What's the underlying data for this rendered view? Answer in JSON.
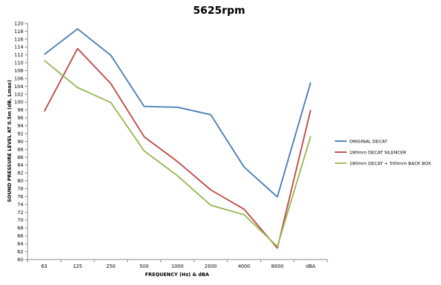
{
  "chart_data": {
    "type": "line",
    "title": "5625rpm",
    "xlabel": "FREQUENCY (Hz) & dBA",
    "ylabel": "SOUND PRESSURE LEVEL AT 0.5m (dB, Lmax)",
    "ylim": [
      60,
      120
    ],
    "y_step": 2,
    "grid": false,
    "legend_position": "right",
    "categories": [
      "63",
      "125",
      "250",
      "500",
      "1000",
      "2000",
      "4000",
      "8000",
      "dBA"
    ],
    "series": [
      {
        "name": "ORIGINAL DECAT",
        "color": "#4a7ebb",
        "values": [
          112.1,
          118.6,
          111.9,
          98.9,
          98.7,
          96.8,
          83.5,
          75.9,
          105.0
        ]
      },
      {
        "name": "180mm DECAT SILENCER",
        "color": "#be4b48",
        "values": [
          97.6,
          113.6,
          104.7,
          91.2,
          84.9,
          77.7,
          72.8,
          62.9,
          98.0
        ]
      },
      {
        "name": "180mm DECAT + 500mm BACK BOX",
        "color": "#98b954",
        "values": [
          110.6,
          103.7,
          99.9,
          87.6,
          81.3,
          73.8,
          71.4,
          63.3,
          91.3
        ]
      }
    ]
  }
}
